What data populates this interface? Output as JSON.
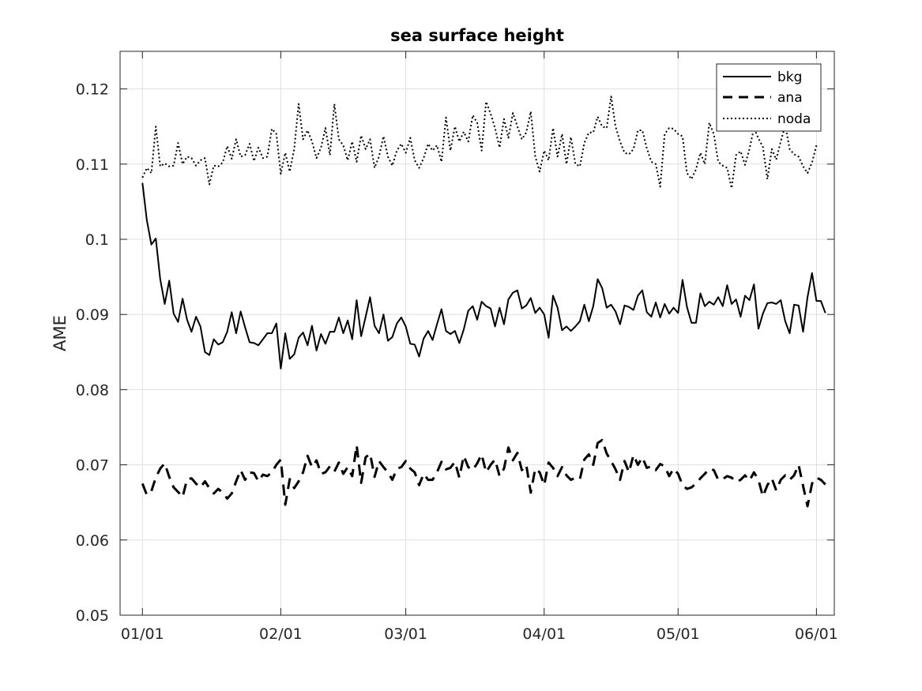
{
  "chart_data": {
    "type": "line",
    "title": "sea surface height",
    "xlabel": "",
    "ylabel": "AME",
    "ylim": [
      0.05,
      0.125
    ],
    "y_ticks": [
      0.05,
      0.06,
      0.07,
      0.08,
      0.09,
      0.1,
      0.11,
      0.12
    ],
    "y_tick_labels": [
      "0.05",
      "0.06",
      "0.07",
      "0.08",
      "0.09",
      "0.1",
      "0.11",
      "0.12"
    ],
    "xlim": [
      "2018-12-27",
      "2019-06-05"
    ],
    "x_ticks": [
      "2019-01-01",
      "2019-02-01",
      "2019-03-01",
      "2019-04-01",
      "2019-05-01",
      "2019-06-01"
    ],
    "x_tick_labels": [
      "01/01",
      "02/01",
      "03/01",
      "04/01",
      "05/01",
      "06/01"
    ],
    "x_start": "2019-01-01",
    "x_step_days": 1,
    "grid": true,
    "legend_position": "top-right",
    "series": [
      {
        "name": "bkg",
        "style": "solid",
        "values": [
          0.1075,
          0.1025,
          0.0993,
          0.1001,
          0.0947,
          0.0914,
          0.0945,
          0.0901,
          0.089,
          0.0921,
          0.0893,
          0.0877,
          0.0897,
          0.0884,
          0.085,
          0.0846,
          0.0867,
          0.086,
          0.0863,
          0.0877,
          0.0903,
          0.0875,
          0.0904,
          0.0883,
          0.0863,
          0.0862,
          0.0859,
          0.0867,
          0.0875,
          0.0875,
          0.0888,
          0.0828,
          0.0875,
          0.0841,
          0.0847,
          0.0869,
          0.0876,
          0.0859,
          0.0885,
          0.0852,
          0.0874,
          0.0861,
          0.0877,
          0.0877,
          0.0896,
          0.0875,
          0.0892,
          0.0867,
          0.0919,
          0.0871,
          0.0897,
          0.0923,
          0.0885,
          0.0875,
          0.09,
          0.0865,
          0.087,
          0.0888,
          0.0896,
          0.0884,
          0.0861,
          0.086,
          0.0844,
          0.0868,
          0.0878,
          0.0866,
          0.0887,
          0.0907,
          0.0878,
          0.0874,
          0.0878,
          0.0862,
          0.088,
          0.0905,
          0.0911,
          0.0893,
          0.0917,
          0.0911,
          0.0908,
          0.0884,
          0.0909,
          0.0887,
          0.092,
          0.0929,
          0.0932,
          0.0908,
          0.0912,
          0.0922,
          0.0902,
          0.0909,
          0.09,
          0.0869,
          0.0925,
          0.0909,
          0.0879,
          0.0884,
          0.0878,
          0.0884,
          0.0891,
          0.0913,
          0.0891,
          0.0911,
          0.0947,
          0.0935,
          0.0909,
          0.0913,
          0.0904,
          0.0887,
          0.0912,
          0.091,
          0.0906,
          0.0925,
          0.0932,
          0.0903,
          0.0897,
          0.0916,
          0.0896,
          0.0914,
          0.0901,
          0.0909,
          0.0902,
          0.0946,
          0.091,
          0.0889,
          0.0889,
          0.0928,
          0.0911,
          0.0917,
          0.0913,
          0.0923,
          0.0911,
          0.0939,
          0.0914,
          0.092,
          0.0897,
          0.0925,
          0.0919,
          0.094,
          0.0881,
          0.0901,
          0.0915,
          0.0916,
          0.0914,
          0.0919,
          0.0891,
          0.0875,
          0.0913,
          0.0912,
          0.0877,
          0.0923,
          0.0955,
          0.0918,
          0.0918,
          0.0902
        ]
      },
      {
        "name": "ana",
        "style": "dashed",
        "values": [
          0.0675,
          0.066,
          0.0665,
          0.0683,
          0.0695,
          0.0702,
          0.0684,
          0.067,
          0.0664,
          0.0657,
          0.0681,
          0.0682,
          0.0675,
          0.067,
          0.0678,
          0.0669,
          0.0662,
          0.0668,
          0.0663,
          0.0655,
          0.0662,
          0.0678,
          0.0693,
          0.068,
          0.069,
          0.0689,
          0.0678,
          0.0687,
          0.0685,
          0.069,
          0.07,
          0.0707,
          0.0647,
          0.0681,
          0.0669,
          0.0678,
          0.069,
          0.0712,
          0.0697,
          0.0706,
          0.0688,
          0.069,
          0.0698,
          0.0691,
          0.0703,
          0.0688,
          0.0697,
          0.0685,
          0.0726,
          0.0676,
          0.071,
          0.0715,
          0.0684,
          0.0705,
          0.0697,
          0.069,
          0.068,
          0.0695,
          0.0697,
          0.0705,
          0.0695,
          0.069,
          0.0673,
          0.0688,
          0.068,
          0.068,
          0.069,
          0.0704,
          0.0694,
          0.0696,
          0.0704,
          0.0683,
          0.0712,
          0.0697,
          0.0693,
          0.0702,
          0.0714,
          0.069,
          0.07,
          0.0707,
          0.0685,
          0.0695,
          0.0723,
          0.0706,
          0.0716,
          0.0693,
          0.07,
          0.0663,
          0.0695,
          0.069,
          0.0673,
          0.0703,
          0.0696,
          0.0685,
          0.0697,
          0.0686,
          0.068,
          0.0683,
          0.0681,
          0.0707,
          0.0714,
          0.07,
          0.0729,
          0.0733,
          0.0715,
          0.0705,
          0.0694,
          0.068,
          0.0705,
          0.069,
          0.0713,
          0.07,
          0.071,
          0.0696,
          0.0698,
          0.0693,
          0.0701,
          0.0698,
          0.0685,
          0.0695,
          0.0688,
          0.0673,
          0.0668,
          0.067,
          0.0675,
          0.0682,
          0.0688,
          0.0695,
          0.0693,
          0.068,
          0.0681,
          0.0685,
          0.0683,
          0.0677,
          0.068,
          0.0686,
          0.0679,
          0.069,
          0.068,
          0.0658,
          0.0673,
          0.0682,
          0.0666,
          0.068,
          0.0686,
          0.068,
          0.0686,
          0.07,
          0.0672,
          0.0645,
          0.0675,
          0.0683,
          0.068,
          0.0674
        ]
      },
      {
        "name": "noda",
        "style": "dotted",
        "values": [
          0.1082,
          0.1095,
          0.1088,
          0.115,
          0.1097,
          0.1101,
          0.1097,
          0.1098,
          0.1128,
          0.11,
          0.111,
          0.1108,
          0.1098,
          0.1105,
          0.1108,
          0.1073,
          0.1098,
          0.1097,
          0.1102,
          0.1124,
          0.1107,
          0.1133,
          0.111,
          0.1112,
          0.1127,
          0.1104,
          0.1122,
          0.1108,
          0.111,
          0.1147,
          0.114,
          0.1087,
          0.1115,
          0.109,
          0.112,
          0.118,
          0.1133,
          0.1145,
          0.113,
          0.1108,
          0.1122,
          0.1148,
          0.1112,
          0.118,
          0.1133,
          0.1125,
          0.1105,
          0.113,
          0.1103,
          0.1138,
          0.112,
          0.1133,
          0.1095,
          0.111,
          0.1137,
          0.111,
          0.1098,
          0.1118,
          0.1127,
          0.1115,
          0.1135,
          0.1105,
          0.1095,
          0.1108,
          0.1127,
          0.1118,
          0.1125,
          0.1103,
          0.1162,
          0.1118,
          0.115,
          0.113,
          0.1143,
          0.113,
          0.1165,
          0.1155,
          0.1118,
          0.1183,
          0.1167,
          0.1148,
          0.1122,
          0.116,
          0.1135,
          0.1168,
          0.115,
          0.1133,
          0.1142,
          0.117,
          0.111,
          0.109,
          0.1118,
          0.1105,
          0.1148,
          0.111,
          0.114,
          0.11,
          0.1136,
          0.11,
          0.1097,
          0.1128,
          0.1142,
          0.1142,
          0.1163,
          0.115,
          0.1148,
          0.119,
          0.115,
          0.113,
          0.1115,
          0.1113,
          0.112,
          0.1145,
          0.1145,
          0.1121,
          0.1103,
          0.11,
          0.107,
          0.114,
          0.1148,
          0.1147,
          0.114,
          0.1137,
          0.1088,
          0.108,
          0.1093,
          0.1115,
          0.11,
          0.1155,
          0.114,
          0.1103,
          0.1098,
          0.1095,
          0.1068,
          0.1112,
          0.1117,
          0.1099,
          0.112,
          0.1148,
          0.1134,
          0.1123,
          0.108,
          0.112,
          0.1106,
          0.113,
          0.1152,
          0.112,
          0.1113,
          0.111,
          0.1097,
          0.1088,
          0.1102,
          0.1125
        ]
      }
    ]
  }
}
